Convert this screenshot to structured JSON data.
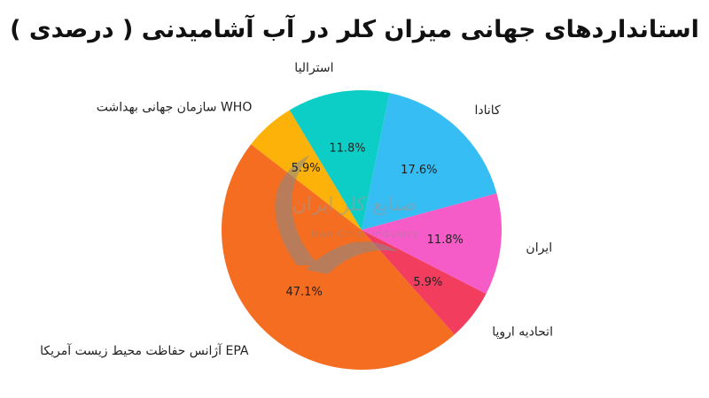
{
  "chart_data": {
    "type": "pie",
    "title": "استانداردهای جهانی میزان کلر در آب آشامیدنی ( درصدی )",
    "slices": [
      {
        "label": "کانادا",
        "value": 17.6,
        "pct_label": "17.6%",
        "color": "#35BDF4"
      },
      {
        "label": "ایران",
        "value": 11.8,
        "pct_label": "11.8%",
        "color": "#F65CC8"
      },
      {
        "label": "اتحادیه اروپا",
        "value": 5.9,
        "pct_label": "5.9%",
        "color": "#F23D5E"
      },
      {
        "label": "آژانس حفاظت محیط زیست آمریکا   EPA",
        "value": 47.1,
        "pct_label": "47.1%",
        "color": "#F46D21"
      },
      {
        "label": "سازمان جهانی بهداشت   WHO",
        "value": 5.9,
        "pct_label": "5.9%",
        "color": "#FDB20A"
      },
      {
        "label": "استرالیا",
        "value": 11.8,
        "pct_label": "11.8%",
        "color": "#0CCEC6"
      }
    ],
    "start_angle_deg": 78.5,
    "direction": "clockwise"
  },
  "watermark": {
    "line1": "صنایع کلر ایران",
    "line2": "Iran Chlor Industry"
  }
}
